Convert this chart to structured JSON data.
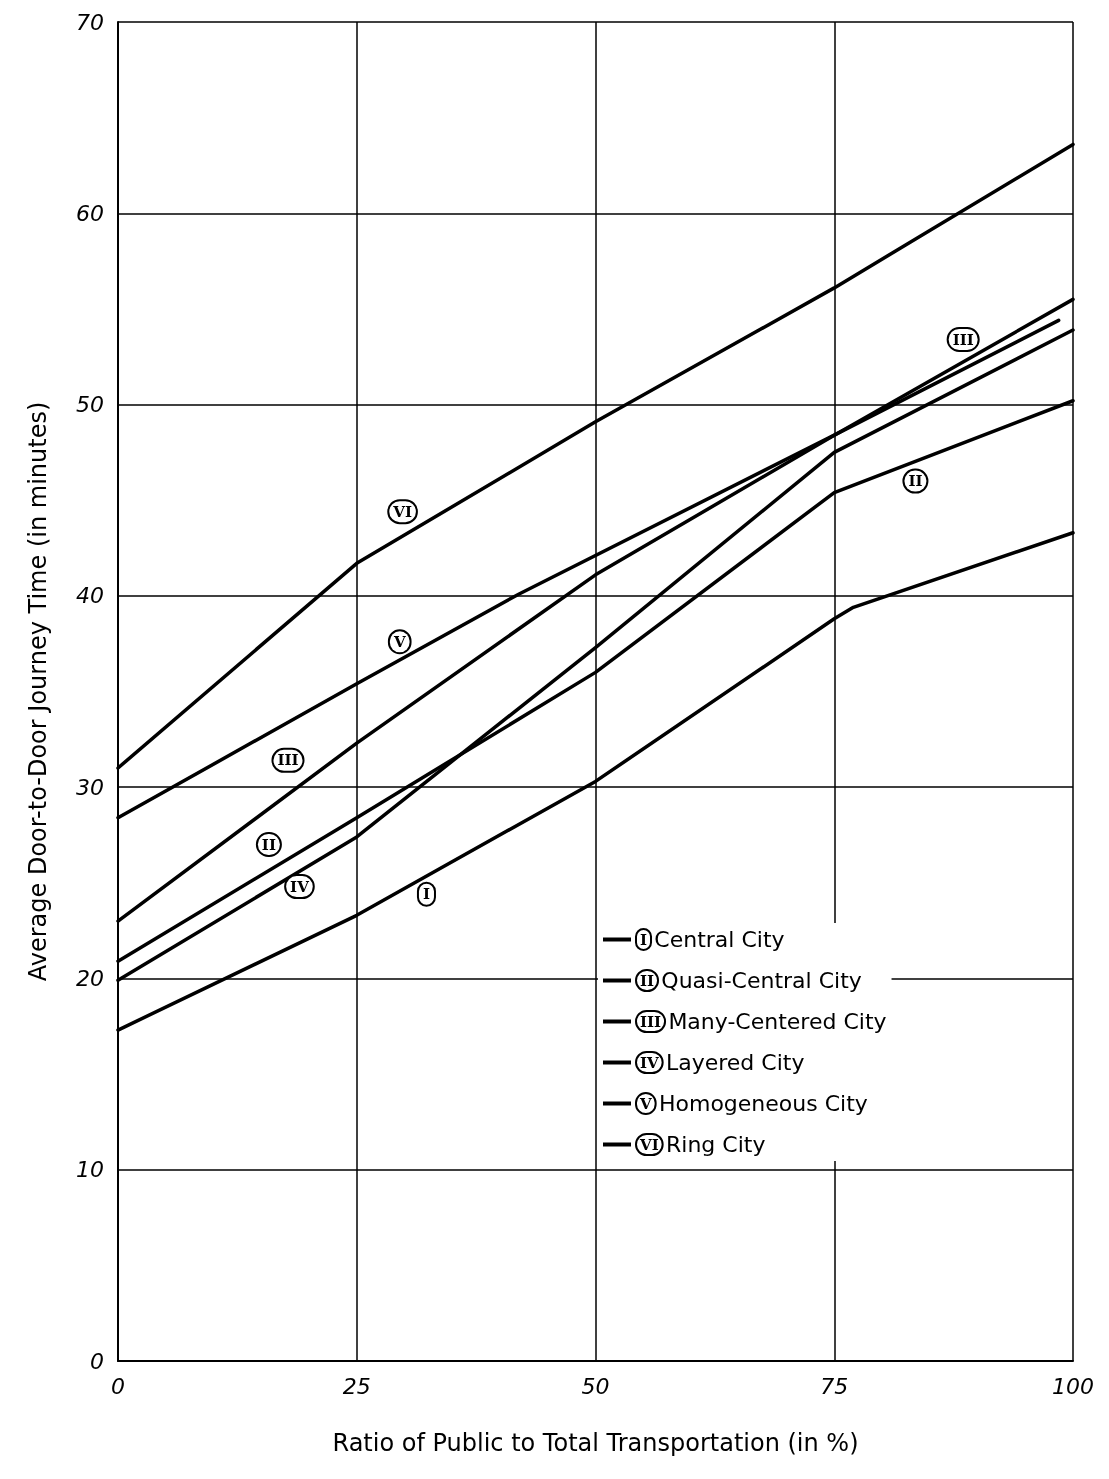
{
  "chart_data": {
    "type": "line",
    "xlabel": "Ratio of Public to Total Transportation (in %)",
    "ylabel": "Average Door-to-Door Journey Time (in minutes)",
    "xlim": [
      0,
      100
    ],
    "xticks": [
      0,
      25,
      50,
      75,
      100
    ],
    "ylim": [
      0,
      70
    ],
    "yticks": [
      0,
      10,
      20,
      30,
      40,
      50,
      60,
      70
    ],
    "grid": true,
    "legend": "bottom right",
    "marker": "none",
    "line_style": "solid",
    "series": [
      {
        "name": "I Central City",
        "color": "#000000",
        "x": [
          0,
          25,
          50,
          75,
          77,
          100
        ],
        "values": [
          17.3,
          23.3,
          30.3,
          38.8,
          39.4,
          43.3
        ]
      },
      {
        "name": "II Quasi-Central City",
        "color": "#000000",
        "x": [
          0,
          25,
          50,
          75,
          100
        ],
        "values": [
          20.9,
          28.4,
          36.0,
          45.4,
          50.2
        ]
      },
      {
        "name": "III Many-Centered City",
        "color": "#000000",
        "x": [
          0,
          25,
          50,
          75,
          100
        ],
        "values": [
          23.0,
          32.3,
          41.1,
          48.4,
          55.5
        ]
      },
      {
        "name": "IV Layered City",
        "color": "#000000",
        "x": [
          0,
          25,
          50,
          75,
          100
        ],
        "values": [
          19.9,
          27.4,
          37.3,
          47.5,
          53.9
        ]
      },
      {
        "name": "V Homogeneous City",
        "color": "#000000",
        "x": [
          0,
          25,
          42,
          75,
          98.5
        ],
        "values": [
          28.4,
          35.4,
          40.1,
          48.4,
          54.4
        ]
      },
      {
        "name": "VI Ring City",
        "color": "#000000",
        "x": [
          0,
          25,
          50,
          75,
          100
        ],
        "values": [
          31.0,
          41.7,
          49.1,
          56.1,
          63.6
        ]
      }
    ],
    "annotations": [
      {
        "text": "I",
        "x": 32.3,
        "y": 24.4
      },
      {
        "text": "II",
        "x": 15.8,
        "y": 27.0
      },
      {
        "text": "II",
        "x": 83.5,
        "y": 46.0
      },
      {
        "text": "III",
        "x": 17.8,
        "y": 31.4
      },
      {
        "text": "III",
        "x": 88.5,
        "y": 53.4
      },
      {
        "text": "IV",
        "x": 19,
        "y": 24.8
      },
      {
        "text": "V",
        "x": 29.5,
        "y": 37.6
      },
      {
        "text": "VI",
        "x": 29.8,
        "y": 44.4
      }
    ]
  }
}
